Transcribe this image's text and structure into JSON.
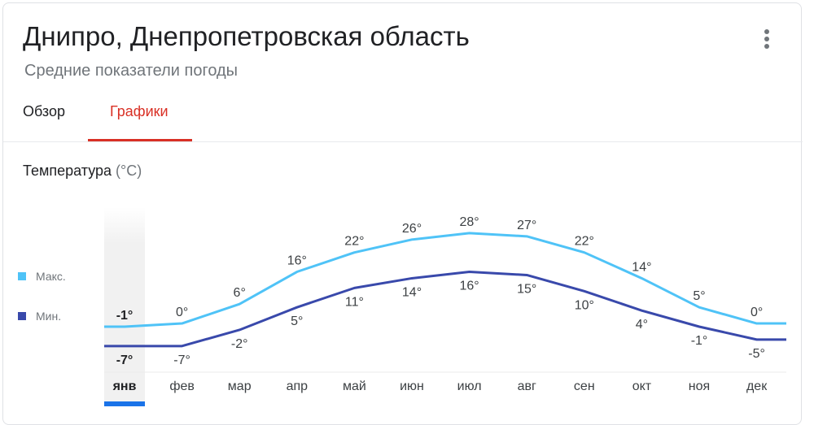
{
  "header": {
    "title": "Днипро, Днепропетровская область",
    "subtitle": "Средние показатели погоды",
    "menu_icon": "more-vert-icon"
  },
  "tabs": [
    {
      "label": "Обзор",
      "active": false
    },
    {
      "label": "Графики",
      "active": true
    }
  ],
  "section": {
    "title": "Температура",
    "unit": "(°C)"
  },
  "legend": [
    {
      "label": "Макс.",
      "color": "#4fc3f7"
    },
    {
      "label": "Мин.",
      "color": "#3949ab"
    }
  ],
  "colors": {
    "accent": "#d93025",
    "max_line": "#4fc3f7",
    "min_line": "#3949ab",
    "selected_month_bar": "#1a73e8"
  },
  "selected_month": "янв",
  "chart_data": {
    "type": "line",
    "title": "Температура (°C)",
    "xlabel": "",
    "ylabel": "",
    "categories": [
      "янв",
      "фев",
      "мар",
      "апр",
      "май",
      "июн",
      "июл",
      "авг",
      "сен",
      "окт",
      "ноя",
      "дек"
    ],
    "series": [
      {
        "name": "Макс.",
        "values": [
          -1,
          0,
          6,
          16,
          22,
          26,
          28,
          27,
          22,
          14,
          5,
          0
        ]
      },
      {
        "name": "Мин.",
        "values": [
          -7,
          -7,
          -2,
          5,
          11,
          14,
          16,
          15,
          10,
          4,
          -1,
          -5
        ]
      }
    ],
    "value_suffix": "°",
    "grid": false,
    "legend_position": "left"
  }
}
